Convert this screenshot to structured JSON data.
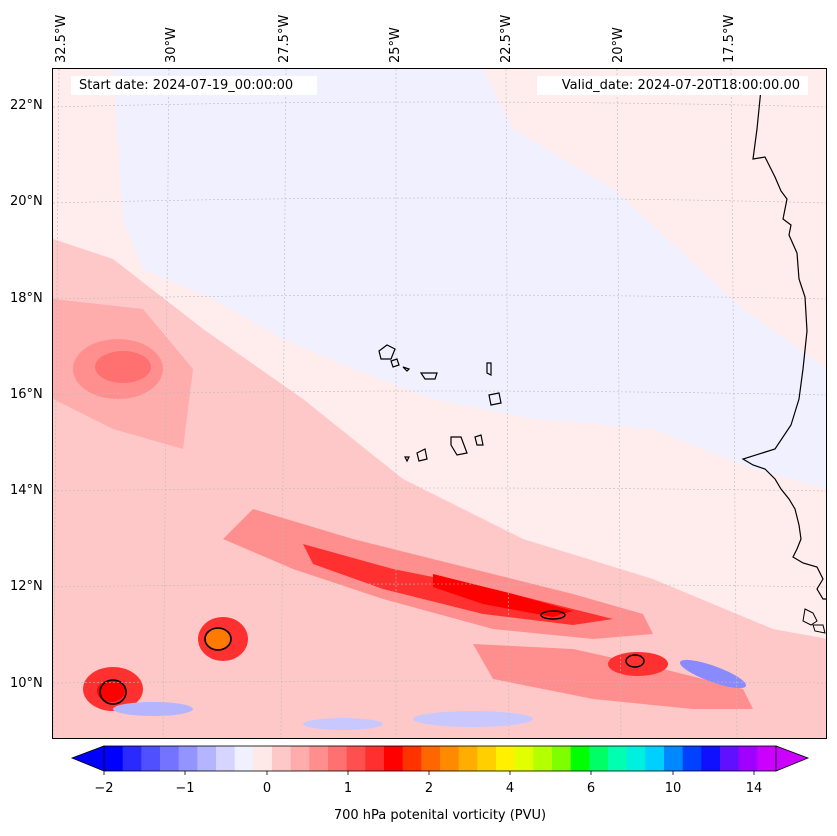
{
  "header": {
    "start_date": "Start date: 2024-07-19_00:00:00",
    "valid_date": "Valid_date: 2024-07-20T18:00:00.00"
  },
  "longitude_labels": [
    "32.5°W",
    "30°W",
    "27.5°W",
    "25°W",
    "22.5°W",
    "20°W",
    "17.5°W"
  ],
  "latitude_labels": [
    "22°N",
    "20°N",
    "18°N",
    "16°N",
    "14°N",
    "12°N",
    "10°N"
  ],
  "colorbar": {
    "label": "700 hPa potenital vorticity (PVU)",
    "ticks": [
      "−2",
      "−1",
      "0",
      "1",
      "2",
      "4",
      "6",
      "10",
      "14"
    ],
    "colors": [
      "#0000ff",
      "#2a2aff",
      "#5050ff",
      "#7373ff",
      "#9494ff",
      "#b4b4ff",
      "#d5d5ff",
      "#f0f0ff",
      "#ffe8e8",
      "#ffc8c8",
      "#ffacac",
      "#ff8f8f",
      "#ff7070",
      "#ff5050",
      "#ff2f2f",
      "#ff0000",
      "#ff3300",
      "#ff6600",
      "#ff8a00",
      "#ffae00",
      "#ffd000",
      "#fff000",
      "#e1ff00",
      "#b4ff00",
      "#7dff00",
      "#00ff00",
      "#00ff66",
      "#00ffb0",
      "#00f0e0",
      "#00d0ff",
      "#0088ff",
      "#0040ff",
      "#1010ff",
      "#6010ff",
      "#a000ff",
      "#cc00ff"
    ]
  },
  "colors": {
    "background_positive": "#ffecec",
    "weak_negative": "#f0f0ff",
    "light_red": "#ffc8c8",
    "medium_red": "#ff8f8f",
    "strong_red": "#ff3030",
    "max_red": "#ff0000",
    "orange": "#ff7a00",
    "light_blue": "#c8c8ff",
    "medium_blue": "#8a8aff",
    "coastline": "#000000"
  }
}
